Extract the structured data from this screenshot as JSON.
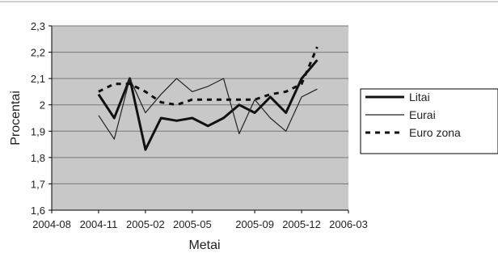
{
  "chart_data": {
    "type": "line",
    "title": "",
    "xlabel": "Metai",
    "ylabel": "Procentai",
    "ylim": [
      1.6,
      2.3
    ],
    "y_ticks": [
      "1,6",
      "1,7",
      "1,8",
      "1,9",
      "2",
      "2,1",
      "2,2",
      "2,3"
    ],
    "x_ticks": [
      "2004-08",
      "2004-11",
      "2005-02",
      "2005-05",
      "2005-09",
      "2005-12",
      "2006-03"
    ],
    "plot_background": "#c8c8c8",
    "grid": true,
    "legend_position": "right",
    "x": [
      "2004-11",
      "2004-12",
      "2005-01",
      "2005-02",
      "2005-03",
      "2005-04",
      "2005-05",
      "2005-06",
      "2005-07",
      "2005-08",
      "2005-09",
      "2005-10",
      "2005-11",
      "2005-12",
      "2006-01"
    ],
    "series": [
      {
        "name": "Litai",
        "style": "solid-thick",
        "values": [
          2.04,
          1.95,
          2.1,
          1.83,
          1.95,
          1.94,
          1.95,
          1.92,
          1.95,
          2.0,
          1.97,
          2.03,
          1.97,
          2.1,
          2.17
        ]
      },
      {
        "name": "Eurai",
        "style": "solid-thin",
        "values": [
          1.96,
          1.87,
          2.1,
          1.97,
          2.04,
          2.1,
          2.05,
          2.07,
          2.1,
          1.89,
          2.02,
          1.95,
          1.9,
          2.03,
          2.06
        ]
      },
      {
        "name": "Euro zona",
        "style": "dashed",
        "values": [
          2.05,
          2.08,
          2.08,
          2.05,
          2.01,
          2.0,
          2.02,
          2.02,
          2.02,
          2.02,
          2.02,
          2.04,
          2.05,
          2.08,
          2.22
        ]
      }
    ]
  }
}
